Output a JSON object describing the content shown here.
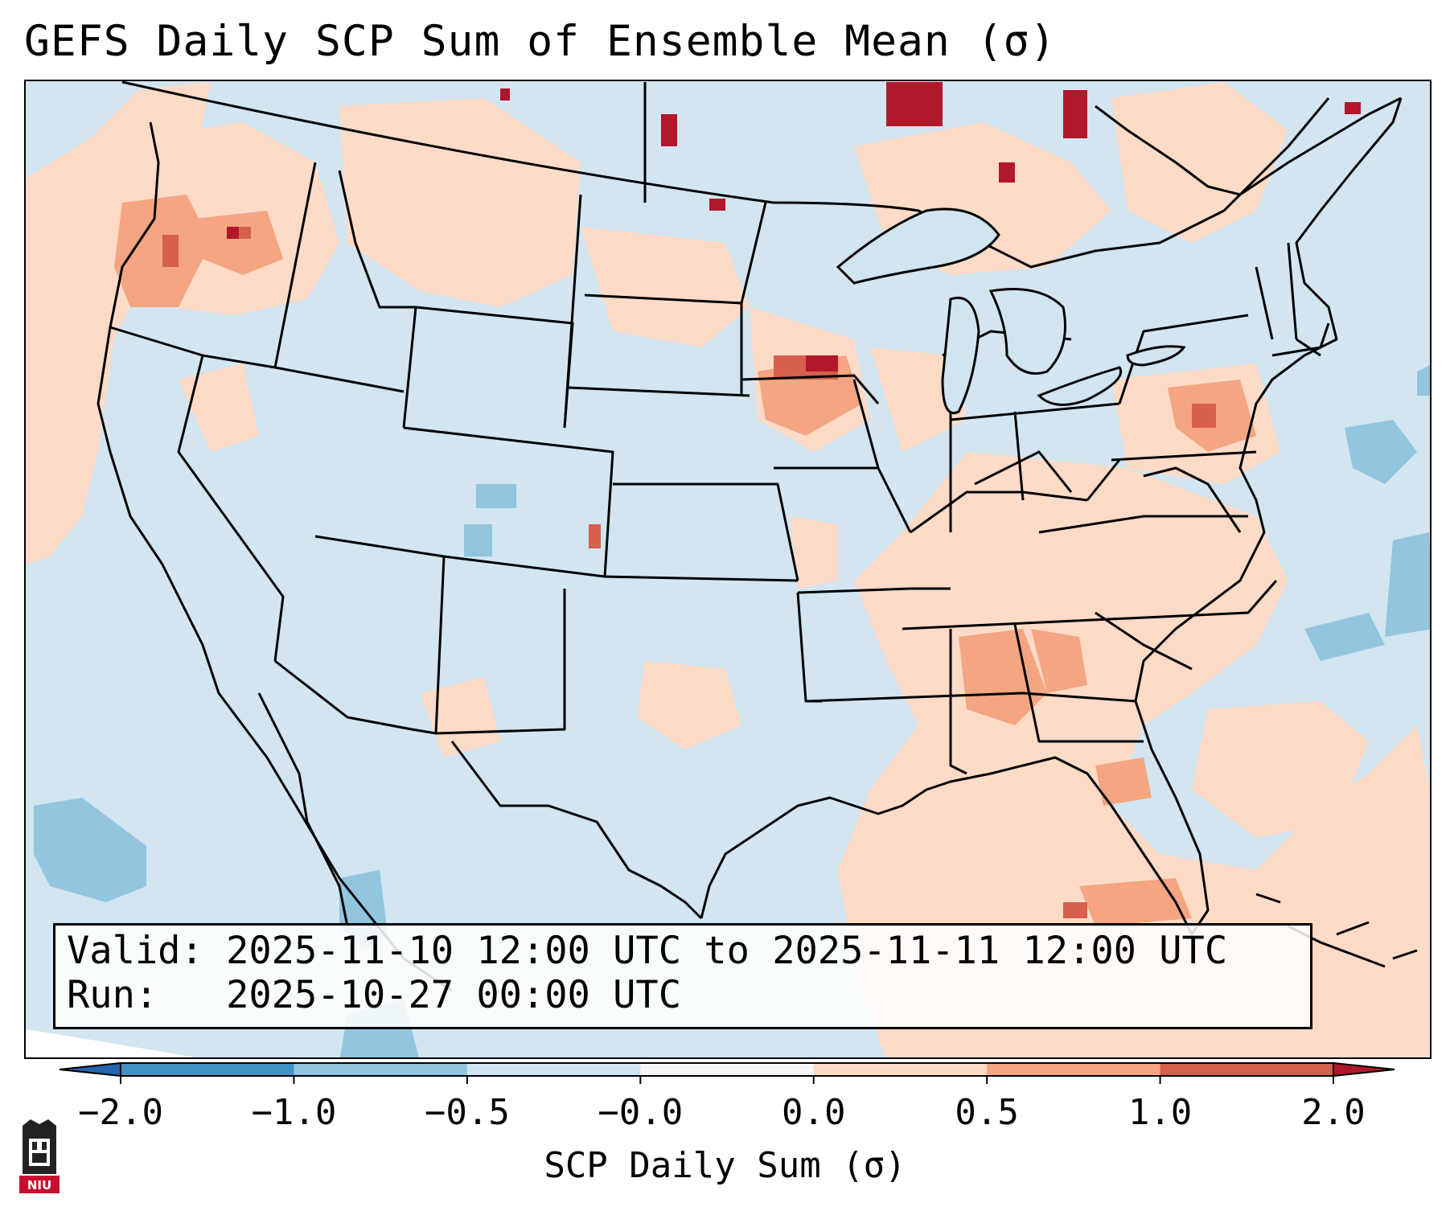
{
  "title": "GEFS Daily SCP Sum of Ensemble Mean (σ)",
  "info_box": {
    "valid_line": "Valid: 2025-11-10 12:00 UTC to 2025-11-11 12:00 UTC",
    "run_line": "Run:   2025-10-27 00:00 UTC"
  },
  "colorbar": {
    "label": "SCP Daily Sum (σ)",
    "ticks": [
      "−2.0",
      "−1.0",
      "−0.5",
      "−0.0",
      "0.0",
      "0.5",
      "1.0",
      "2.0"
    ],
    "colors": [
      "#4392c4",
      "#92c5de",
      "#d1e5f0",
      "#f7f7f7",
      "#fddbc7",
      "#f4a582",
      "#d6604d"
    ],
    "extend_min_color": "#2166ac",
    "extend_max_color": "#b2182b"
  },
  "map": {
    "background_color": "#d1e5f0",
    "projection_note": "Lambert conformal CONUS",
    "features": [
      "coastlines",
      "state-borders",
      "country-borders",
      "gridded-field"
    ]
  },
  "logo": {
    "text": "NIU",
    "color": "#c8102e"
  }
}
